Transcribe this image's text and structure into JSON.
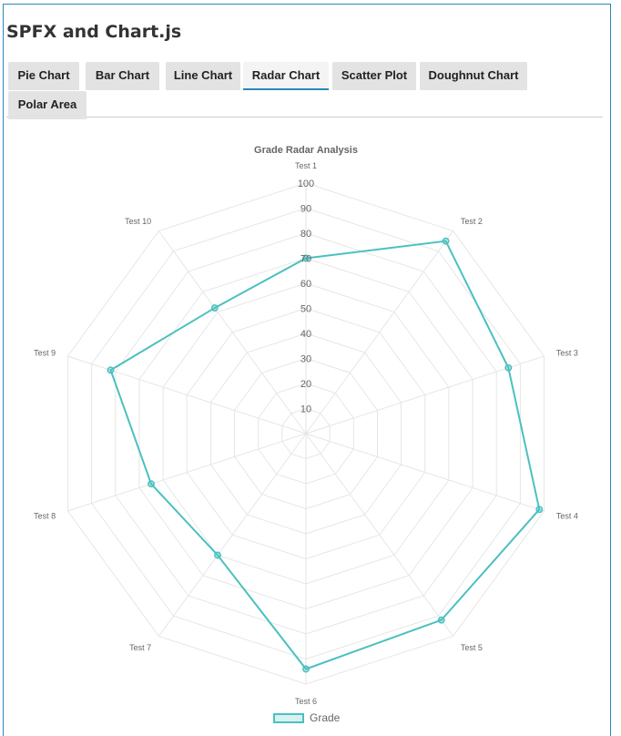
{
  "page": {
    "title": "SPFX and Chart.js"
  },
  "tabs": [
    {
      "label": "Pie Chart",
      "active": false
    },
    {
      "label": "Bar Chart",
      "active": false
    },
    {
      "label": "Line Chart",
      "active": false
    },
    {
      "label": "Radar Chart",
      "active": true
    },
    {
      "label": "Scatter Plot",
      "active": false
    },
    {
      "label": "Doughnut Chart",
      "active": false
    },
    {
      "label": "Polar Area",
      "active": false
    }
  ],
  "chart_data": {
    "type": "radar",
    "title": "Grade Radar Analysis",
    "categories": [
      "Test 1",
      "Test 2",
      "Test 3",
      "Test 4",
      "Test 5",
      "Test 6",
      "Test 7",
      "Test 8",
      "Test 9",
      "Test 10"
    ],
    "series": [
      {
        "name": "Grade",
        "values": [
          70,
          95,
          85,
          98,
          92,
          94,
          60,
          65,
          82,
          62
        ],
        "color": "#4bc0c0"
      }
    ],
    "r_range": [
      0,
      100
    ],
    "tick_labels": [
      "10",
      "20",
      "30",
      "40",
      "50",
      "60",
      "70",
      "80",
      "90",
      "100"
    ],
    "grid": true,
    "legend_position": "bottom"
  }
}
